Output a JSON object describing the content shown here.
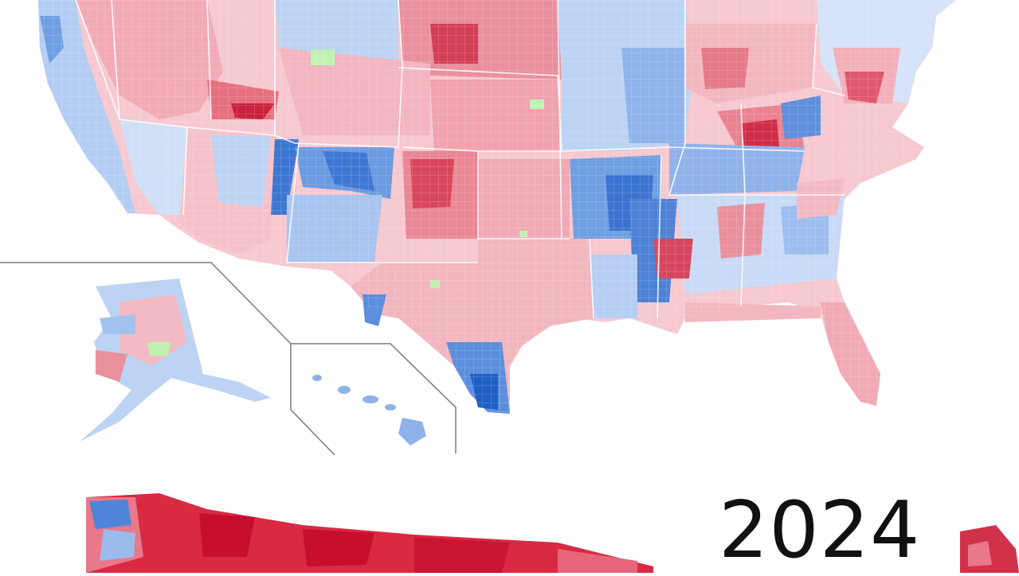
{
  "figure": {
    "type": "county-level election choropleth map",
    "regions_shown": [
      "contiguous-united-states",
      "alaska-inset",
      "hawaii-inset",
      "second-map-partial"
    ],
    "year_label": "2024",
    "colors": {
      "dark_red": "#c8102e",
      "medium_red": "#e56b7a",
      "light_red": "#f4b8c0",
      "pale_red": "#f9d5da",
      "dark_blue": "#1f5fc4",
      "medium_blue": "#5b8fdd",
      "light_blue": "#a9c6f0",
      "pale_blue": "#cfe0f7",
      "green": "#b8f0a8",
      "inset_border": "#7a7a7a",
      "background": "#ffffff"
    }
  }
}
